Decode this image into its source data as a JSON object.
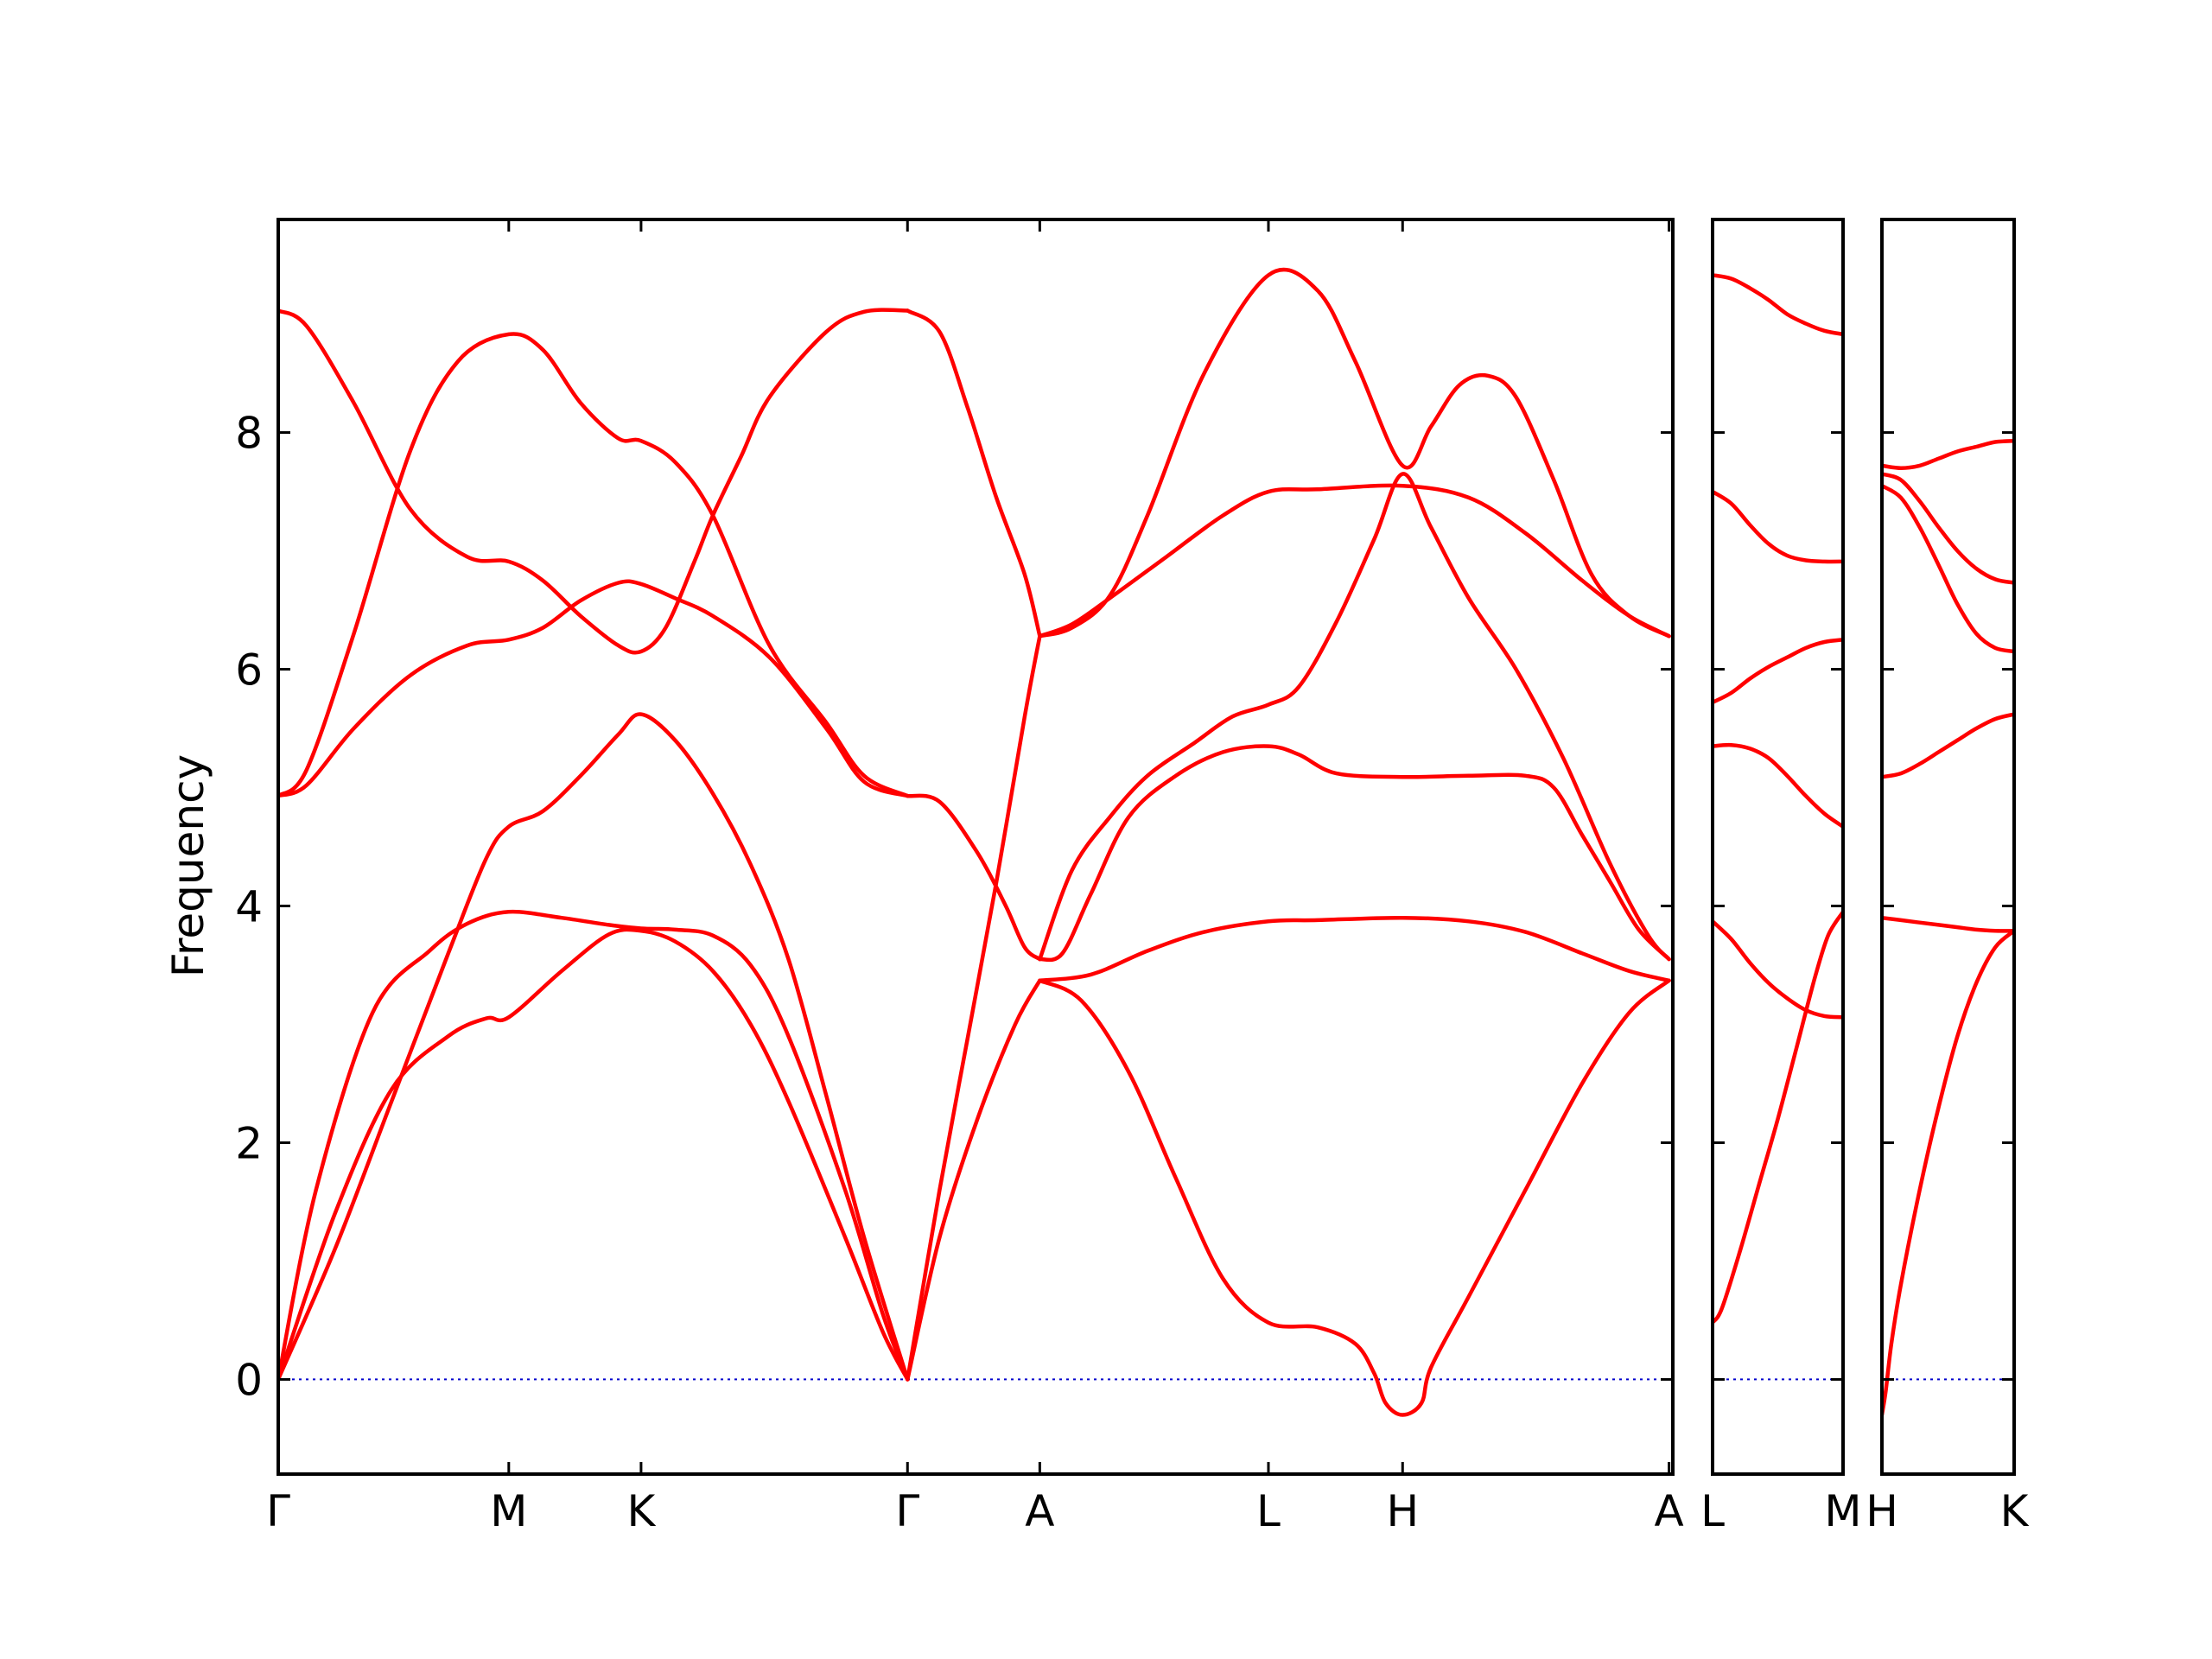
{
  "chart_data": {
    "type": "line",
    "ylabel": "Frequency",
    "ylim": [
      -0.8,
      9.8
    ],
    "yticks": [
      0,
      2,
      4,
      6,
      8
    ],
    "colors": {
      "bands": "#ff0000",
      "zero_line": "#0000cc",
      "frame": "#000000"
    },
    "panels": [
      {
        "x_range": [
          0,
          7.38
        ],
        "ticks": [
          {
            "x": 0,
            "label": "Γ"
          },
          {
            "x": 1.22,
            "label": "M"
          },
          {
            "x": 1.92,
            "label": "K"
          },
          {
            "x": 3.33,
            "label": "Γ"
          },
          {
            "x": 4.03,
            "label": "A"
          },
          {
            "x": 5.24,
            "label": "L"
          },
          {
            "x": 5.95,
            "label": "H"
          },
          {
            "x": 7.36,
            "label": "A"
          }
        ],
        "bands": [
          {
            "x": [
              0,
              0.3,
              0.6,
              0.9,
              1.1,
              1.22,
              1.5,
              1.75,
              1.92,
              2.1,
              2.3,
              2.5,
              2.7,
              3.0,
              3.2,
              3.33
            ],
            "y": [
              0,
              1.4,
              2.45,
              2.9,
              3.05,
              3.06,
              3.45,
              3.76,
              3.79,
              3.7,
              3.45,
              3.0,
              2.35,
              1.2,
              0.4,
              0
            ]
          },
          {
            "x": [
              0,
              0.2,
              0.5,
              0.8,
              1.0,
              1.22,
              1.5,
              1.75,
              1.92,
              2.1,
              2.3,
              2.5,
              2.7,
              3.0,
              3.2,
              3.33
            ],
            "y": [
              0,
              1.6,
              3.1,
              3.62,
              3.85,
              3.95,
              3.9,
              3.84,
              3.81,
              3.8,
              3.75,
              3.5,
              2.9,
              1.6,
              0.55,
              0
            ]
          },
          {
            "x": [
              0,
              0.3,
              0.6,
              0.9,
              1.1,
              1.22,
              1.4,
              1.6,
              1.8,
              1.92,
              2.1,
              2.3,
              2.5,
              2.7,
              2.9,
              3.1,
              3.33
            ],
            "y": [
              0,
              1.1,
              2.35,
              3.6,
              4.4,
              4.67,
              4.8,
              5.1,
              5.45,
              5.62,
              5.4,
              4.95,
              4.35,
              3.55,
              2.4,
              1.2,
              0
            ]
          },
          {
            "x": [
              0,
              0.15,
              0.4,
              0.7,
              1.0,
              1.22,
              1.4,
              1.6,
              1.8,
              1.92,
              2.1,
              2.3,
              2.6,
              2.9,
              3.1,
              3.33
            ],
            "y": [
              4.93,
              5.02,
              5.5,
              5.95,
              6.2,
              6.25,
              6.35,
              6.58,
              6.73,
              6.72,
              6.6,
              6.45,
              6.1,
              5.5,
              5.05,
              4.93
            ]
          },
          {
            "x": [
              0,
              0.15,
              0.4,
              0.7,
              0.95,
              1.22,
              1.4,
              1.6,
              1.8,
              1.92,
              2.1,
              2.3,
              2.6,
              2.9,
              3.1,
              3.33
            ],
            "y": [
              4.93,
              5.15,
              6.3,
              7.85,
              8.6,
              8.83,
              8.7,
              8.25,
              7.95,
              7.93,
              7.75,
              7.3,
              6.2,
              5.55,
              5.1,
              4.93
            ]
          },
          {
            "x": [
              0,
              0.15,
              0.4,
              0.7,
              1.0,
              1.22,
              1.4,
              1.6,
              1.8,
              1.92,
              2.05,
              2.2,
              2.3,
              2.45,
              2.6,
              2.9,
              3.1,
              3.33
            ],
            "y": [
              9.03,
              8.9,
              8.25,
              7.35,
              6.95,
              6.91,
              6.75,
              6.45,
              6.2,
              6.15,
              6.35,
              6.9,
              7.3,
              7.8,
              8.3,
              8.85,
              9.02,
              9.03
            ]
          },
          {
            "x": [
              3.33,
              3.5,
              3.7,
              3.9,
              4.03
            ],
            "y": [
              0,
              1.2,
              2.2,
              3.0,
              3.37
            ]
          },
          {
            "x": [
              3.33,
              3.5,
              3.65,
              3.8,
              3.95,
              4.03
            ],
            "y": [
              0,
              1.6,
              2.9,
              4.2,
              5.6,
              6.28
            ]
          },
          {
            "x": [
              3.33,
              3.5,
              3.7,
              3.85,
              3.95,
              4.03
            ],
            "y": [
              4.93,
              4.88,
              4.45,
              4.0,
              3.65,
              3.55
            ]
          },
          {
            "x": [
              3.33,
              3.5,
              3.65,
              3.8,
              3.95,
              4.03
            ],
            "y": [
              9.03,
              8.85,
              8.2,
              7.45,
              6.8,
              6.28
            ]
          },
          {
            "x": [
              4.03,
              4.25,
              4.5,
              4.75,
              5.0,
              5.24,
              5.5,
              5.7,
              5.8,
              5.86,
              5.95,
              6.05,
              6.1,
              6.3,
              6.6,
              6.9,
              7.15,
              7.36
            ],
            "y": [
              3.37,
              3.2,
              2.6,
              1.7,
              0.85,
              0.48,
              0.44,
              0.3,
              0.05,
              -0.2,
              -0.3,
              -0.2,
              0.1,
              0.7,
              1.6,
              2.5,
              3.1,
              3.37
            ]
          },
          {
            "x": [
              4.03,
              4.3,
              4.6,
              4.9,
              5.24,
              5.5,
              5.95,
              6.3,
              6.6,
              6.9,
              7.15,
              7.36
            ],
            "y": [
              3.37,
              3.42,
              3.62,
              3.78,
              3.87,
              3.88,
              3.9,
              3.87,
              3.78,
              3.6,
              3.45,
              3.37
            ]
          },
          {
            "x": [
              4.03,
              4.15,
              4.3,
              4.5,
              4.75,
              5.0,
              5.24,
              5.4,
              5.6,
              5.95,
              6.3,
              6.6,
              6.75,
              6.9,
              7.05,
              7.2,
              7.36
            ],
            "y": [
              3.55,
              3.6,
              4.1,
              4.75,
              5.1,
              5.3,
              5.35,
              5.28,
              5.12,
              5.09,
              5.1,
              5.1,
              5.0,
              4.6,
              4.2,
              3.8,
              3.55
            ]
          },
          {
            "x": [
              4.03,
              4.2,
              4.4,
              4.6,
              4.85,
              5.05,
              5.24,
              5.4,
              5.6,
              5.8,
              5.95,
              6.1,
              6.3,
              6.55,
              6.8,
              7.05,
              7.25,
              7.36
            ],
            "y": [
              3.55,
              4.3,
              4.75,
              5.1,
              5.38,
              5.6,
              5.7,
              5.85,
              6.4,
              7.1,
              7.65,
              7.2,
              6.6,
              6.0,
              5.25,
              4.35,
              3.75,
              3.55
            ]
          },
          {
            "x": [
              4.03,
              4.2,
              4.4,
              4.7,
              5.0,
              5.24,
              5.5,
              5.95,
              6.3,
              6.6,
              6.9,
              7.15,
              7.36
            ],
            "y": [
              6.28,
              6.38,
              6.6,
              6.95,
              7.3,
              7.5,
              7.52,
              7.55,
              7.45,
              7.15,
              6.75,
              6.45,
              6.28
            ]
          },
          {
            "x": [
              4.03,
              4.2,
              4.4,
              4.6,
              4.9,
              5.24,
              5.5,
              5.7,
              5.95,
              6.1,
              6.25,
              6.4,
              6.55,
              6.75,
              6.95,
              7.15,
              7.36
            ],
            "y": [
              6.28,
              6.35,
              6.62,
              7.3,
              8.5,
              9.33,
              9.2,
              8.6,
              7.72,
              8.05,
              8.4,
              8.48,
              8.3,
              7.6,
              6.8,
              6.45,
              6.28
            ]
          }
        ]
      },
      {
        "x_range": [
          0,
          0.7
        ],
        "ticks": [
          {
            "x": 0,
            "label": "L"
          },
          {
            "x": 0.7,
            "label": "M"
          }
        ],
        "bands": [
          {
            "x": [
              0,
              0.05,
              0.15,
              0.25,
              0.35,
              0.45,
              0.55,
              0.62,
              0.7
            ],
            "y": [
              0.48,
              0.6,
              1.1,
              1.65,
              2.2,
              2.8,
              3.4,
              3.75,
              3.95
            ]
          },
          {
            "x": [
              0,
              0.1,
              0.2,
              0.3,
              0.4,
              0.5,
              0.6,
              0.7
            ],
            "y": [
              3.87,
              3.72,
              3.52,
              3.35,
              3.22,
              3.12,
              3.07,
              3.06
            ]
          },
          {
            "x": [
              0,
              0.1,
              0.2,
              0.3,
              0.4,
              0.5,
              0.6,
              0.7
            ],
            "y": [
              5.35,
              5.36,
              5.33,
              5.25,
              5.1,
              4.93,
              4.78,
              4.67
            ]
          },
          {
            "x": [
              0,
              0.1,
              0.2,
              0.3,
              0.4,
              0.5,
              0.6,
              0.7
            ],
            "y": [
              5.72,
              5.8,
              5.92,
              6.02,
              6.1,
              6.18,
              6.23,
              6.25
            ]
          },
          {
            "x": [
              0,
              0.1,
              0.2,
              0.3,
              0.4,
              0.5,
              0.6,
              0.7
            ],
            "y": [
              7.5,
              7.4,
              7.22,
              7.06,
              6.96,
              6.92,
              6.91,
              6.91
            ]
          },
          {
            "x": [
              0,
              0.1,
              0.2,
              0.3,
              0.4,
              0.5,
              0.6,
              0.7
            ],
            "y": [
              9.33,
              9.3,
              9.22,
              9.12,
              9.0,
              8.92,
              8.86,
              8.83
            ]
          }
        ]
      },
      {
        "x_range": [
          0,
          0.7
        ],
        "ticks": [
          {
            "x": 0,
            "label": "H"
          },
          {
            "x": 0.7,
            "label": "K"
          }
        ],
        "bands": [
          {
            "x": [
              0,
              0.02,
              0.05,
              0.1,
              0.2,
              0.3,
              0.4,
              0.5,
              0.6,
              0.7
            ],
            "y": [
              -0.3,
              -0.1,
              0.3,
              0.8,
              1.6,
              2.3,
              2.9,
              3.35,
              3.65,
              3.79
            ]
          },
          {
            "x": [
              0,
              0.1,
              0.2,
              0.3,
              0.4,
              0.5,
              0.6,
              0.7
            ],
            "y": [
              3.9,
              3.88,
              3.86,
              3.84,
              3.82,
              3.8,
              3.79,
              3.79
            ]
          },
          {
            "x": [
              0,
              0.1,
              0.2,
              0.3,
              0.4,
              0.5,
              0.6,
              0.7
            ],
            "y": [
              5.09,
              5.12,
              5.2,
              5.3,
              5.4,
              5.5,
              5.58,
              5.62
            ]
          },
          {
            "x": [
              0,
              0.1,
              0.2,
              0.3,
              0.4,
              0.5,
              0.6,
              0.7
            ],
            "y": [
              7.55,
              7.45,
              7.2,
              6.88,
              6.55,
              6.3,
              6.18,
              6.15
            ]
          },
          {
            "x": [
              0,
              0.1,
              0.2,
              0.3,
              0.4,
              0.5,
              0.6,
              0.7
            ],
            "y": [
              7.65,
              7.6,
              7.42,
              7.2,
              7.0,
              6.85,
              6.76,
              6.73
            ]
          },
          {
            "x": [
              0,
              0.1,
              0.2,
              0.3,
              0.4,
              0.5,
              0.6,
              0.7
            ],
            "y": [
              7.72,
              7.7,
              7.72,
              7.78,
              7.84,
              7.88,
              7.92,
              7.93
            ]
          }
        ]
      }
    ]
  }
}
